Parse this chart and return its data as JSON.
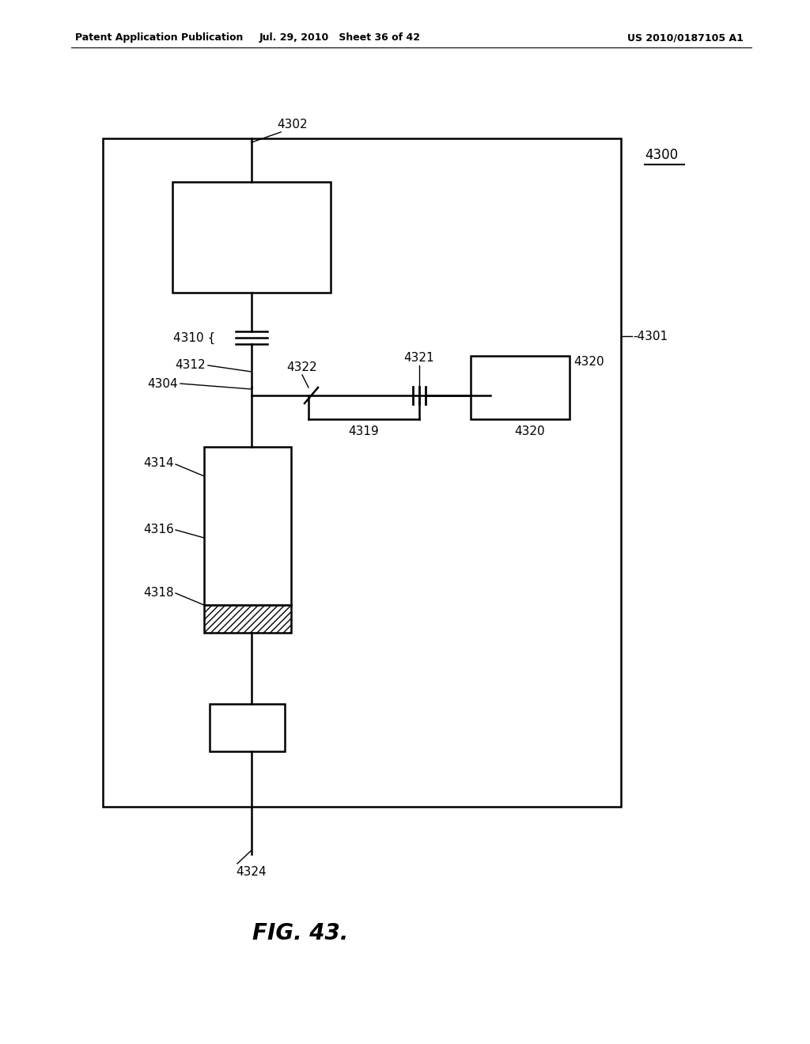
{
  "header_left": "Patent Application Publication",
  "header_mid": "Jul. 29, 2010   Sheet 36 of 42",
  "header_right": "US 2010/0187105 A1",
  "fig_caption": "FIG. 43.",
  "bg_color": "#ffffff",
  "line_color": "#000000"
}
